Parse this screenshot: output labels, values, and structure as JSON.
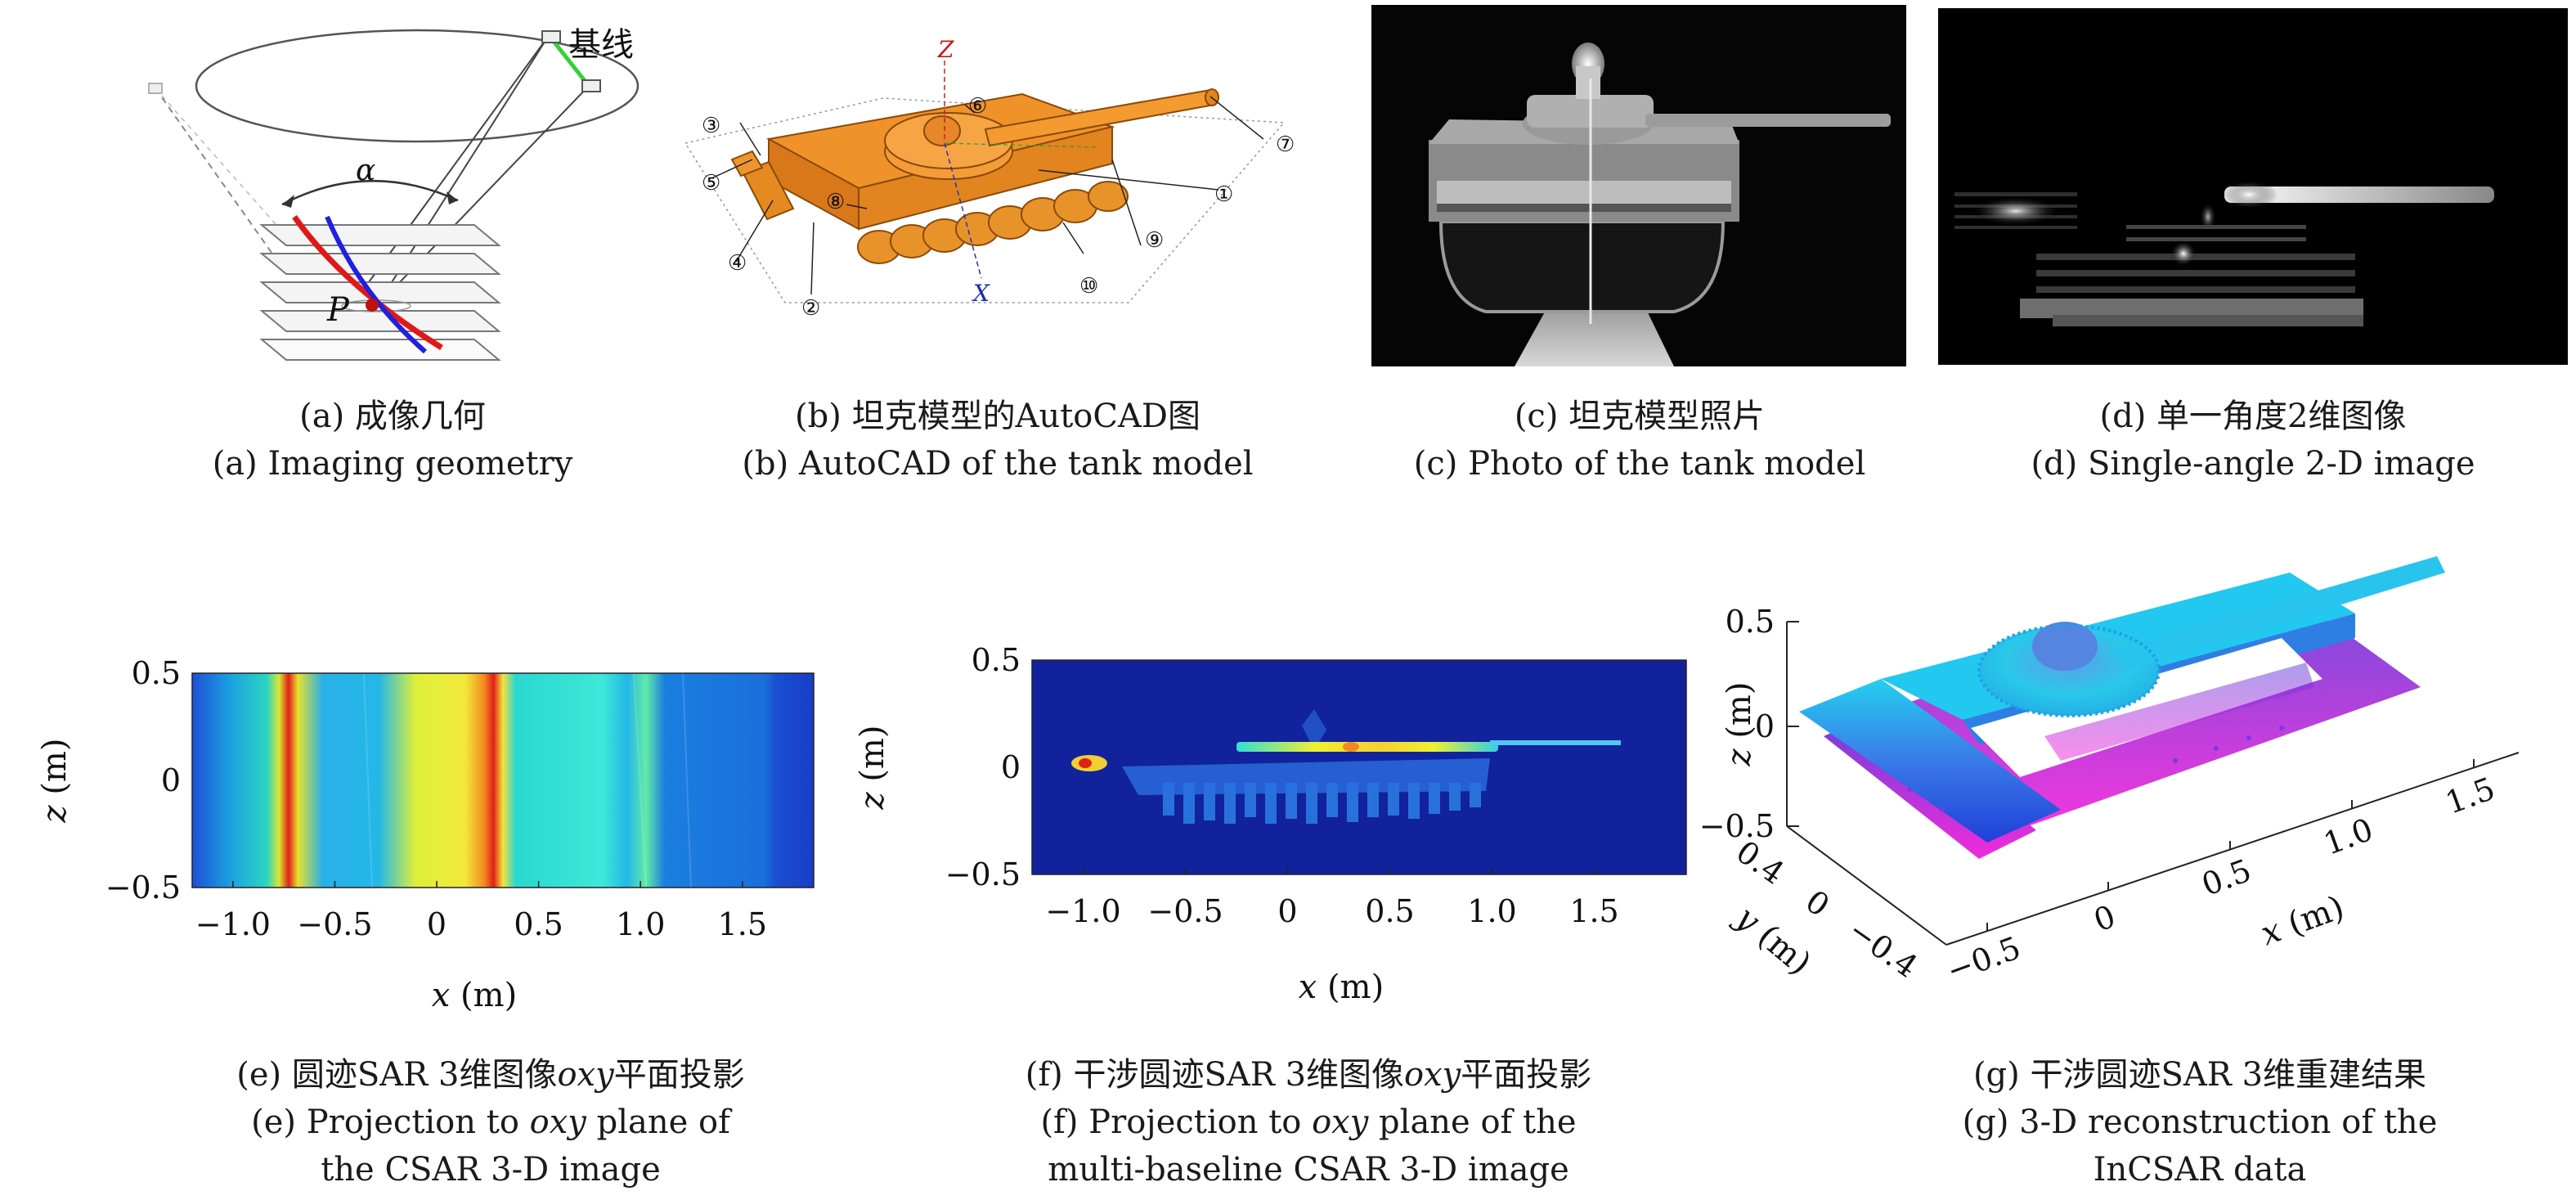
{
  "panels": {
    "a": {
      "caption_cn": "(a) 成像几何",
      "caption_en": "(a) Imaging geometry",
      "label_baseline": "基线",
      "label_alpha": "α",
      "label_point": "P"
    },
    "b": {
      "caption_cn": "(b) 坦克模型的AutoCAD图",
      "caption_en": "(b) AutoCAD of the tank model",
      "axis_z": "Z",
      "axis_x": "X",
      "callouts": [
        "①",
        "②",
        "③",
        "④",
        "⑤",
        "⑥",
        "⑦",
        "⑧",
        "⑨",
        "⑩"
      ]
    },
    "c": {
      "caption_cn": "(c) 坦克模型照片",
      "caption_en": "(c) Photo of the tank model"
    },
    "d": {
      "caption_cn": "(d) 单一角度2维图像",
      "caption_en": "(d) Single-angle 2-D image"
    },
    "e": {
      "caption_cn_prefix": "(e) 圆迹SAR 3维图像",
      "caption_cn_italic": "oxy",
      "caption_cn_suffix": "平面投影",
      "caption_en_l1_prefix": "(e) Projection to ",
      "caption_en_l1_italic": "oxy",
      "caption_en_l1_suffix": " plane of",
      "caption_en_l2": "the CSAR 3-D image"
    },
    "f": {
      "caption_cn_prefix": "(f) 干涉圆迹SAR 3维图像",
      "caption_cn_italic": "oxy",
      "caption_cn_suffix": "平面投影",
      "caption_en_l1_prefix": "(f) Projection to ",
      "caption_en_l1_italic": "oxy",
      "caption_en_l1_suffix": " plane of the",
      "caption_en_l2": "multi-baseline CSAR 3-D image"
    },
    "g": {
      "caption_cn": "(g) 干涉圆迹SAR 3维重建结果",
      "caption_en_l1": "(g) 3-D reconstruction of the",
      "caption_en_l2": "InCSAR data"
    }
  },
  "chart_data": [
    {
      "id": "e",
      "type": "heatmap",
      "xlabel_var": "x",
      "xlabel_unit": " (m)",
      "ylabel_var": "z",
      "ylabel_unit": " (m)",
      "xlim": [
        -1.2,
        1.85
      ],
      "ylim": [
        -0.5,
        0.5
      ],
      "xticks": [
        -1.0,
        -0.5,
        0,
        0.5,
        1.0,
        1.5
      ],
      "xtick_labels": [
        "−1.0",
        "−0.5",
        "0",
        "0.5",
        "1.0",
        "1.5"
      ],
      "yticks": [
        0.5,
        0,
        -0.5
      ],
      "ytick_labels": [
        "0.5",
        "0",
        "−0.5"
      ],
      "colormap": "jet"
    },
    {
      "id": "f",
      "type": "heatmap",
      "xlabel_var": "x",
      "xlabel_unit": " (m)",
      "ylabel_var": "z",
      "ylabel_unit": " (m)",
      "xlim": [
        -1.25,
        1.95
      ],
      "ylim": [
        -0.5,
        0.5
      ],
      "xticks": [
        -1.0,
        -0.5,
        0,
        0.5,
        1.0,
        1.5
      ],
      "xtick_labels": [
        "−1.0",
        "−0.5",
        "0",
        "0.5",
        "1.0",
        "1.5"
      ],
      "yticks": [
        0.5,
        0,
        -0.5
      ],
      "ytick_labels": [
        "0.5",
        "0",
        "−0.5"
      ],
      "colormap": "jet"
    },
    {
      "id": "g",
      "type": "scatter",
      "xlabel_var": "x",
      "xlabel_unit": " (m)",
      "ylabel_var": "y",
      "ylabel_unit": " (m)",
      "zlabel_var": "z",
      "zlabel_unit": " (m)",
      "xtick_labels": [
        "−0.5",
        "0",
        "0.5",
        "1.0",
        "1.5"
      ],
      "ytick_labels": [
        "0.4",
        "0",
        "−0.4"
      ],
      "ztick_labels": [
        "0.5",
        "0",
        "−0.5"
      ],
      "colormap": "cool"
    }
  ]
}
